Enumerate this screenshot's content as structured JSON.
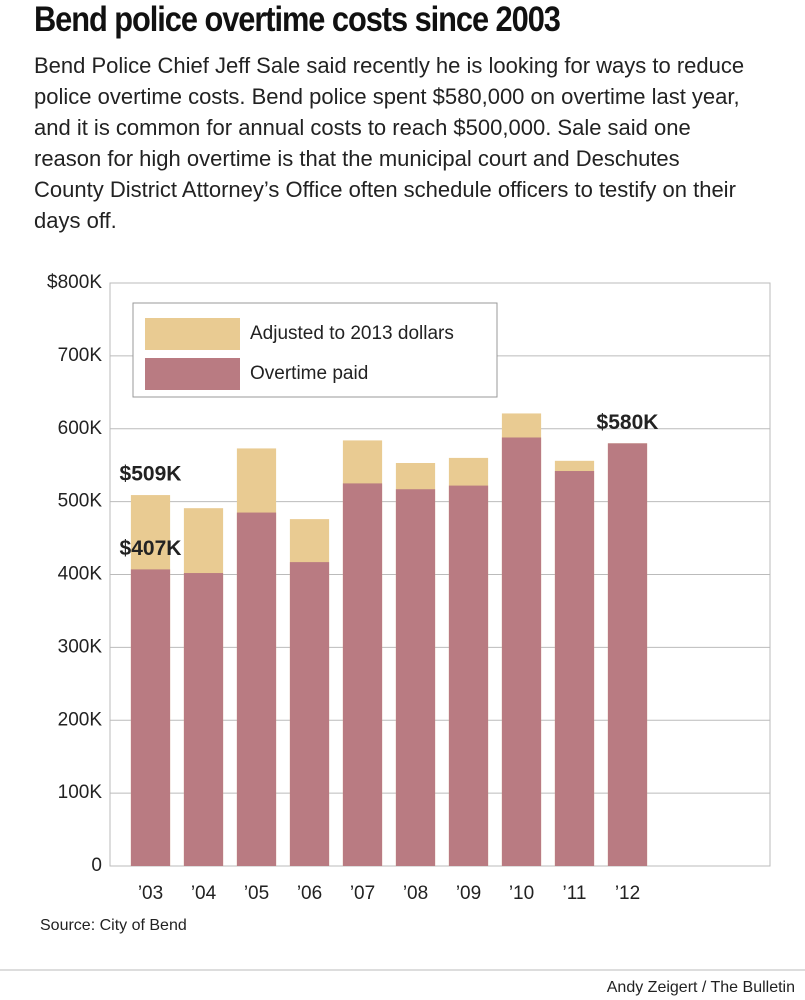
{
  "chart_data": {
    "type": "bar",
    "title": "Bend police overtime costs since 2003",
    "subtitle": "Bend Police Chief Jeff Sale said recently he is looking for ways to reduce police overtime costs. Bend police spent $580,000 on overtime last year, and it is common for annual costs to reach $500,000. Sale said one reason for high overtime is that the municipal court and Deschutes County District Attorney’s Office often schedule officers to testify on their days off.",
    "categories": [
      "’03",
      "’04",
      "’05",
      "’06",
      "’07",
      "’08",
      "’09",
      "’10",
      "’11",
      "’12"
    ],
    "series": [
      {
        "name": "Adjusted to 2013 dollars",
        "color": "#e9cb92",
        "values": [
          509000,
          491000,
          573000,
          476000,
          584000,
          553000,
          560000,
          621000,
          556000,
          580000
        ],
        "value_labels": [
          "$509K",
          null,
          null,
          null,
          null,
          null,
          null,
          null,
          null,
          null
        ]
      },
      {
        "name": "Overtime paid",
        "color": "#b97b82",
        "values": [
          407000,
          402000,
          485000,
          417000,
          525000,
          517000,
          522000,
          588000,
          542000,
          580000
        ],
        "value_labels": [
          "$407K",
          null,
          null,
          null,
          null,
          null,
          null,
          null,
          null,
          "$580K"
        ]
      }
    ],
    "ylim": [
      0,
      800000
    ],
    "yticks": [
      0,
      {
        "value": 100000,
        "label": "100K"
      },
      {
        "value": 200000,
        "label": "200K"
      },
      {
        "value": 300000,
        "label": "300K"
      },
      {
        "value": 400000,
        "label": "400K"
      },
      {
        "value": 500000,
        "label": "500K"
      },
      {
        "value": 600000,
        "label": "600K"
      },
      {
        "value": 700000,
        "label": "700K"
      },
      {
        "value": 800000,
        "label": "$800K"
      }
    ],
    "grid": true,
    "source": "Source: City of Bend",
    "credit": "Andy Zeigert / The Bulletin"
  }
}
